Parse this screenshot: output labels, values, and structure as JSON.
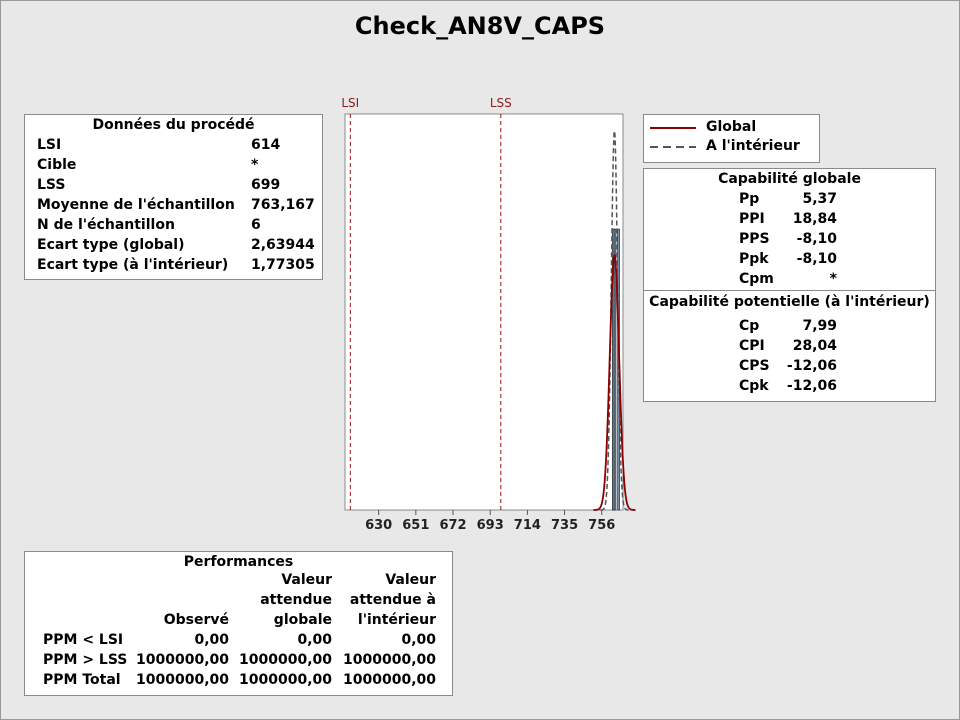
{
  "title": "Check_AN8V_CAPS",
  "process": {
    "header": "Données du procédé",
    "rows": [
      {
        "label": "LSI",
        "value": "614"
      },
      {
        "label": "Cible",
        "value": "*"
      },
      {
        "label": "LSS",
        "value": "699"
      },
      {
        "label": "Moyenne de l'échantillon",
        "value": "763,167"
      },
      {
        "label": "N de l'échantillon",
        "value": "6"
      },
      {
        "label": "Ecart type (global)",
        "value": "2,63944"
      },
      {
        "label": "Ecart type (à l'intérieur)",
        "value": "1,77305"
      }
    ]
  },
  "legend": {
    "global": "Global",
    "within": "A l'intérieur"
  },
  "capability": {
    "overall_header": "Capabilité globale",
    "overall": [
      {
        "label": "Pp",
        "value": "5,37"
      },
      {
        "label": "PPI",
        "value": "18,84"
      },
      {
        "label": "PPS",
        "value": "-8,10"
      },
      {
        "label": "Ppk",
        "value": "-8,10"
      },
      {
        "label": "Cpm",
        "value": "*"
      }
    ],
    "potential_header": "Capabilité potentielle (à l'intérieur)",
    "potential": [
      {
        "label": "Cp",
        "value": "7,99"
      },
      {
        "label": "CPI",
        "value": "28,04"
      },
      {
        "label": "CPS",
        "value": "-12,06"
      },
      {
        "label": "Cpk",
        "value": "-12,06"
      }
    ]
  },
  "performance": {
    "header": "Performances",
    "col_observed": "Observé",
    "col_expected_global": [
      "Valeur",
      "attendue",
      "globale"
    ],
    "col_expected_within": [
      "Valeur",
      "attendue à",
      "l'intérieur"
    ],
    "rows": [
      {
        "label": "PPM < LSI",
        "observed": "0,00",
        "global": "0,00",
        "within": "0,00"
      },
      {
        "label": "PPM > LSS",
        "observed": "1000000,00",
        "global": "1000000,00",
        "within": "1000000,00"
      },
      {
        "label": "PPM Total",
        "observed": "1000000,00",
        "global": "1000000,00",
        "within": "1000000,00"
      }
    ]
  },
  "chart_data": {
    "type": "bar",
    "title": "Check_AN8V_CAPS",
    "xlim": [
      611,
      768
    ],
    "ylim": [
      0,
      0.235
    ],
    "x_ticks": [
      630,
      651,
      672,
      693,
      714,
      735,
      756
    ],
    "lsl": 614,
    "usl": 699,
    "lsl_label": "LSI",
    "usl_label": "LSS",
    "mean": 763.167,
    "sd_overall": 2.63944,
    "sd_within": 1.77305,
    "bins": [
      {
        "x0": 760.0,
        "x1": 761.0,
        "density": 0.0
      },
      {
        "x0": 761.0,
        "x1": 762.0,
        "density": 0.0
      },
      {
        "x0": 762.0,
        "x1": 763.0,
        "density": 0.1667
      },
      {
        "x0": 763.0,
        "x1": 764.0,
        "density": 0.1667
      },
      {
        "x0": 764.0,
        "x1": 765.0,
        "density": 0.0
      },
      {
        "x0": 765.0,
        "x1": 766.0,
        "density": 0.1667
      }
    ],
    "grid": false,
    "legend": "top-right"
  }
}
